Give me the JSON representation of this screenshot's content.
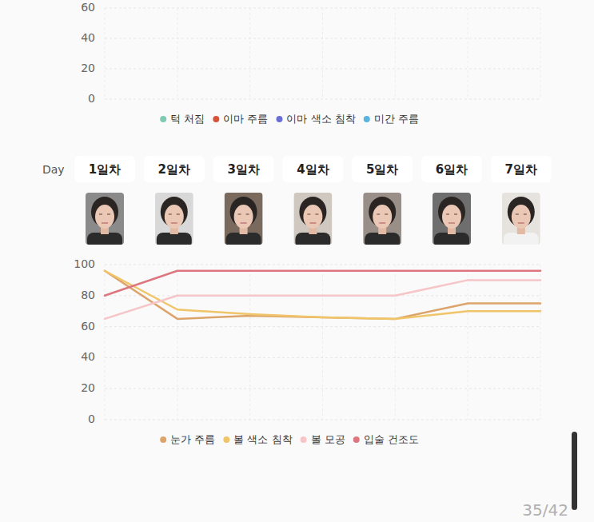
{
  "page": {
    "day_label": "Day",
    "page_number": "35/42"
  },
  "chart_data": [
    {
      "type": "line",
      "categories": [
        null,
        null,
        null,
        null,
        null,
        null,
        null
      ],
      "series": [
        {
          "name": "턱 처짐",
          "color": "#7ecbb0",
          "values": [
            null,
            null,
            null,
            null,
            null,
            null,
            null
          ]
        },
        {
          "name": "이마 주름",
          "color": "#d9533a",
          "values": [
            null,
            null,
            null,
            null,
            null,
            null,
            null
          ]
        },
        {
          "name": "이마 색소 침착",
          "color": "#6a6fd6",
          "values": [
            null,
            null,
            null,
            null,
            null,
            null,
            null
          ]
        },
        {
          "name": "미간 주름",
          "color": "#5ab4e0",
          "values": [
            null,
            null,
            null,
            null,
            null,
            null,
            null
          ]
        }
      ],
      "ylim": [
        0,
        60
      ],
      "yticks": [
        0,
        20,
        40,
        60
      ],
      "grid": true,
      "legend": "bottom",
      "tick_labels": "y"
    },
    {
      "type": "line",
      "categories": [
        "1일차",
        "2일차",
        "3일차",
        "4일차",
        "5일차",
        "6일차",
        "7일차"
      ],
      "series": [
        {
          "name": "눈가 주름",
          "color": "#dca46b",
          "values": [
            96,
            65,
            67,
            66,
            65,
            75,
            75
          ]
        },
        {
          "name": "볼 색소 침착",
          "color": "#f0c468",
          "values": [
            96,
            71,
            68,
            66,
            65,
            70,
            70
          ]
        },
        {
          "name": "볼 모공",
          "color": "#f5c5c8",
          "values": [
            65,
            80,
            80,
            80,
            80,
            90,
            90
          ]
        },
        {
          "name": "입술 건조도",
          "color": "#dc7780",
          "values": [
            80,
            96,
            96,
            96,
            96,
            96,
            96
          ]
        }
      ],
      "ylim": [
        0,
        100
      ],
      "yticks": [
        0,
        20,
        40,
        60,
        80,
        100
      ],
      "grid": true,
      "legend": "bottom"
    }
  ]
}
